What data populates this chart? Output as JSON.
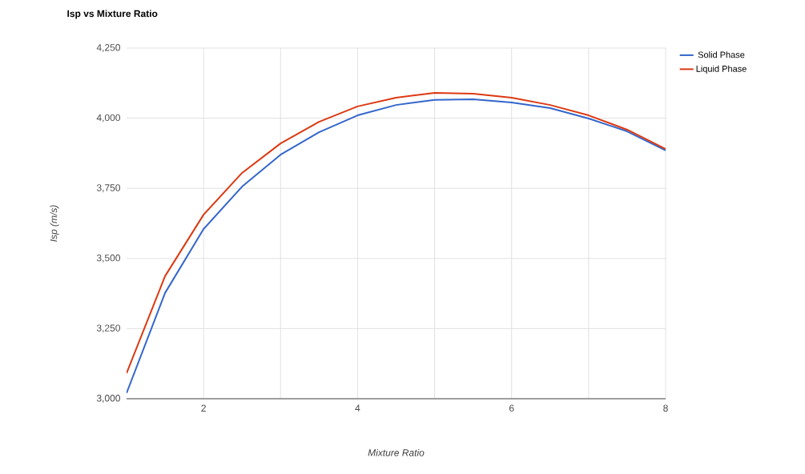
{
  "chart_data": {
    "type": "line",
    "title": "Isp vs Mixture Ratio",
    "xlabel": "Mixture Ratio",
    "ylabel": "Isp (m/s)",
    "x": [
      1,
      1.5,
      2,
      2.5,
      3,
      3.5,
      4,
      4.5,
      5,
      5.5,
      6,
      6.5,
      7,
      7.5,
      8
    ],
    "series": [
      {
        "name": "Solid Phase",
        "color": "#3366cc",
        "values": [
          3020,
          3377,
          3605,
          3756,
          3870,
          3950,
          4010,
          4047,
          4065,
          4067,
          4056,
          4036,
          3999,
          3953,
          3885
        ]
      },
      {
        "name": "Liquid Phase",
        "color": "#dc3912",
        "values": [
          3091,
          3437,
          3656,
          3805,
          3910,
          3987,
          4042,
          4073,
          4090,
          4087,
          4073,
          4047,
          4010,
          3959,
          3890
        ]
      }
    ],
    "xlim": [
      1,
      8
    ],
    "xticks": [
      2,
      {
        "value": 3,
        "label": null
      },
      4,
      {
        "value": 5,
        "label": null
      },
      6,
      {
        "value": 7,
        "label": null
      },
      8
    ],
    "ylim": [
      3000,
      4250
    ],
    "yticks": [
      {
        "value": 3000,
        "label": "3,000"
      },
      {
        "value": 3250,
        "label": "3,250"
      },
      {
        "value": 3500,
        "label": "3,500"
      },
      {
        "value": 3750,
        "label": "3,750"
      },
      {
        "value": 4000,
        "label": "4,000"
      },
      {
        "value": 4250,
        "label": "4,250"
      }
    ],
    "grid": true,
    "legend": "top right",
    "marker": "none",
    "line_style": "solid"
  }
}
